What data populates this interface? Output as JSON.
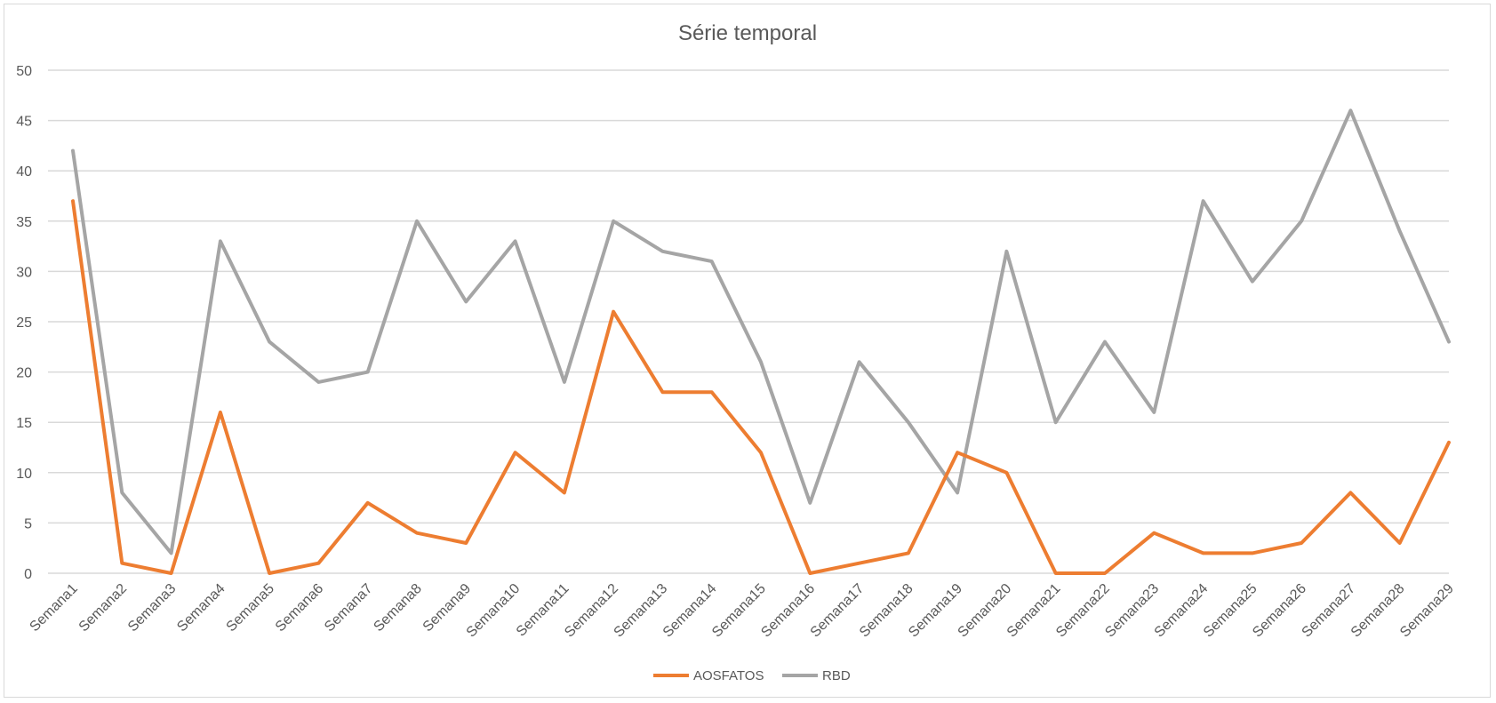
{
  "chart_data": {
    "type": "line",
    "title": "Série temporal",
    "xlabel": "",
    "ylabel": "",
    "ylim": [
      0,
      50
    ],
    "yticks": [
      0,
      5,
      10,
      15,
      20,
      25,
      30,
      35,
      40,
      45,
      50
    ],
    "grid": true,
    "legend_position": "bottom",
    "categories": [
      "Semana1",
      "Semana2",
      "Semana3",
      "Semana4",
      "Semana5",
      "Semana6",
      "Semana7",
      "Semana8",
      "Semana9",
      "Semana10",
      "Semana11",
      "Semana12",
      "Semana13",
      "Semana14",
      "Semana15",
      "Semana16",
      "Semana17",
      "Semana18",
      "Semana19",
      "Semana20",
      "Semana21",
      "Semana22",
      "Semana23",
      "Semana24",
      "Semana25",
      "Semana26",
      "Semana27",
      "Semana28",
      "Semana29"
    ],
    "series": [
      {
        "name": "AOSFATOS",
        "color": "#ed7d31",
        "values": [
          37,
          1,
          0,
          16,
          0,
          1,
          7,
          4,
          3,
          12,
          8,
          26,
          18,
          18,
          12,
          0,
          1,
          2,
          12,
          10,
          0,
          0,
          4,
          2,
          2,
          3,
          8,
          3,
          13
        ]
      },
      {
        "name": "RBD",
        "color": "#a5a5a5",
        "values": [
          42,
          8,
          2,
          33,
          23,
          19,
          20,
          35,
          27,
          33,
          19,
          35,
          32,
          31,
          21,
          7,
          21,
          15,
          8,
          32,
          15,
          23,
          16,
          37,
          29,
          35,
          46,
          34,
          23
        ]
      }
    ]
  }
}
